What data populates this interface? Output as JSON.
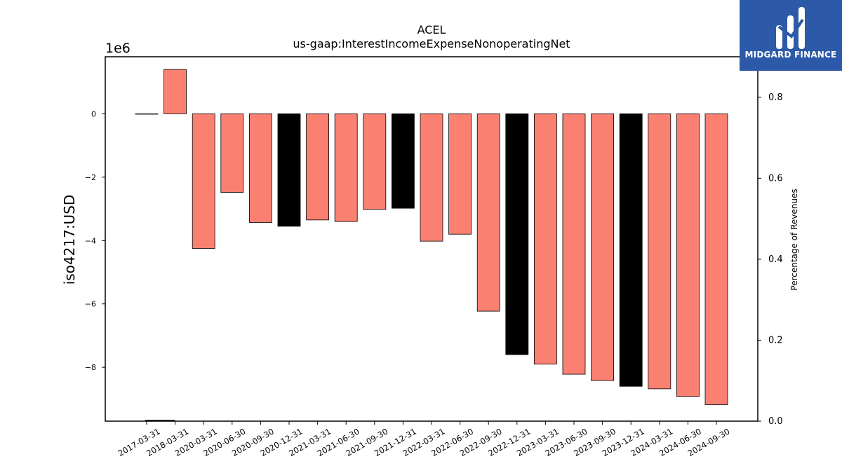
{
  "chart_data": {
    "type": "bar",
    "title": "ACEL",
    "subtitle": "us-gaap:InterestIncomeExpenseNonoperatingNet",
    "ylabel": "iso4217:USD",
    "y2label": "Percentage of Revenues",
    "offset_label": "1e6",
    "ylim": [
      -9.7,
      1.8
    ],
    "y2lim": [
      0.0,
      0.9
    ],
    "yticks": [
      0,
      -2,
      -4,
      -6,
      -8
    ],
    "y2ticks": [
      0.0,
      0.2,
      0.4,
      0.6,
      0.8
    ],
    "categories": [
      "2017-03-31",
      "2018-03-31",
      "2020-03-31",
      "2020-06-30",
      "2020-09-30",
      "2020-12-31",
      "2021-03-31",
      "2021-06-30",
      "2021-09-30",
      "2021-12-31",
      "2022-03-31",
      "2022-06-30",
      "2022-09-30",
      "2022-12-31",
      "2023-03-31",
      "2023-06-30",
      "2023-09-30",
      "2023-12-31",
      "2024-03-31",
      "2024-06-30",
      "2024-09-30"
    ],
    "values": [
      0.0,
      1.4,
      -4.25,
      -2.48,
      -3.43,
      -3.55,
      -3.35,
      -3.4,
      -3.02,
      -2.98,
      -4.02,
      -3.8,
      -6.23,
      -7.6,
      -7.9,
      -8.22,
      -8.42,
      -8.6,
      -8.68,
      -8.92,
      -9.18
    ],
    "colors": [
      "#fa8072",
      "#fa8072",
      "#fa8072",
      "#fa8072",
      "#fa8072",
      "#000000",
      "#fa8072",
      "#fa8072",
      "#fa8072",
      "#000000",
      "#fa8072",
      "#fa8072",
      "#fa8072",
      "#000000",
      "#fa8072",
      "#fa8072",
      "#fa8072",
      "#000000",
      "#fa8072",
      "#fa8072",
      "#fa8072"
    ],
    "grid": false
  },
  "logo": {
    "text": "MIDGARD FINANCE",
    "bg_color": "#2d5aa8"
  }
}
